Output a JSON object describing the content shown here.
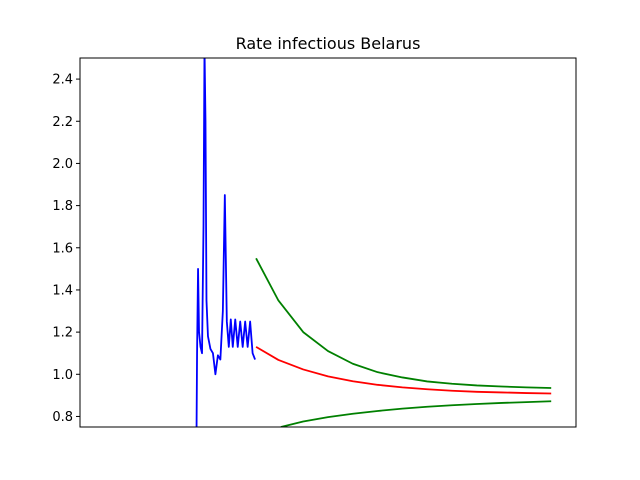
{
  "chart_data": {
    "type": "line",
    "title": "Rate infectious Belarus",
    "xlabel": "",
    "ylabel": "",
    "xlim": [
      0,
      100
    ],
    "ylim": [
      0.75,
      2.5
    ],
    "yticks": [
      0.8,
      1.0,
      1.2,
      1.4,
      1.6,
      1.8,
      2.0,
      2.2,
      2.4
    ],
    "ytick_labels": [
      "0.8",
      "1.0",
      "1.2",
      "1.4",
      "1.6",
      "1.8",
      "2.0",
      "2.2",
      "2.4"
    ],
    "xticks_visible": false,
    "grid": false,
    "series": [
      {
        "color": "#0000ff",
        "x": [
          23.5,
          23.6,
          23.8,
          24.0,
          24.3,
          24.6,
          24.9,
          25.1,
          25.3,
          25.5,
          25.8,
          26.3,
          26.8,
          27.3,
          27.8,
          28.3,
          28.8,
          29.2,
          29.6,
          30.0,
          30.4,
          30.8,
          31.3,
          31.8,
          32.3,
          32.8,
          33.3,
          33.8,
          34.3,
          34.8,
          35.3
        ],
        "y": [
          0.75,
          1.1,
          1.5,
          1.2,
          1.13,
          1.1,
          1.7,
          2.55,
          2.2,
          1.35,
          1.18,
          1.12,
          1.1,
          1.0,
          1.09,
          1.07,
          1.3,
          1.85,
          1.25,
          1.13,
          1.26,
          1.13,
          1.26,
          1.13,
          1.25,
          1.13,
          1.25,
          1.13,
          1.25,
          1.1,
          1.07
        ]
      },
      {
        "color": "#ff0000",
        "x": [
          35.5,
          40,
          45,
          50,
          55,
          60,
          65,
          70,
          75,
          80,
          85,
          90,
          95
        ],
        "y": [
          1.13,
          1.068,
          1.023,
          0.99,
          0.967,
          0.95,
          0.938,
          0.929,
          0.922,
          0.917,
          0.914,
          0.911,
          0.909
        ]
      },
      {
        "color": "#008000",
        "x": [
          35.5,
          40,
          45,
          50,
          55,
          60,
          65,
          70,
          75,
          80,
          85,
          90,
          95
        ],
        "y": [
          1.55,
          1.35,
          1.2,
          1.11,
          1.05,
          1.01,
          0.985,
          0.966,
          0.955,
          0.947,
          0.942,
          0.938,
          0.935
        ]
      },
      {
        "color": "#008000",
        "x": [
          40.5,
          45,
          50,
          55,
          60,
          65,
          70,
          75,
          80,
          85,
          90,
          95
        ],
        "y": [
          0.75,
          0.776,
          0.797,
          0.813,
          0.826,
          0.837,
          0.846,
          0.853,
          0.859,
          0.864,
          0.868,
          0.872
        ]
      }
    ]
  }
}
